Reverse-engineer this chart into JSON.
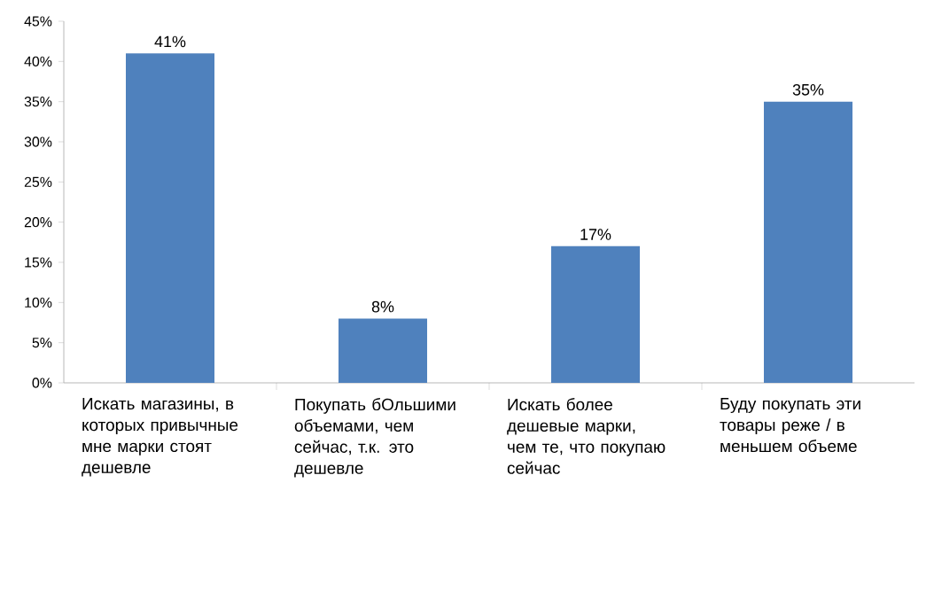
{
  "chart_data": {
    "type": "bar",
    "categories": [
      "Искать магазины, в которых привычные мне марки стоят дешевле",
      "Покупать бОльшими объемами, чем сейчас, т.к. это дешевле",
      "Искать более дешевые марки, чем те, что покупаю сейчас",
      "Буду покупать эти товары реже / в меньшем объеме"
    ],
    "values": [
      41,
      8,
      17,
      35
    ],
    "value_labels": [
      "41%",
      "8%",
      "17%",
      "35%"
    ],
    "color": "#4f81bd",
    "ylim": [
      0,
      45
    ],
    "yticks": [
      {
        "value": 0,
        "label": "0%"
      },
      {
        "value": 5,
        "label": "5%"
      },
      {
        "value": 10,
        "label": "10%"
      },
      {
        "value": 15,
        "label": "15%"
      },
      {
        "value": 20,
        "label": "20%"
      },
      {
        "value": 25,
        "label": "25%"
      },
      {
        "value": 30,
        "label": "30%"
      },
      {
        "value": 35,
        "label": "35%"
      },
      {
        "value": 40,
        "label": "40%"
      },
      {
        "value": 45,
        "label": "45%"
      }
    ]
  }
}
